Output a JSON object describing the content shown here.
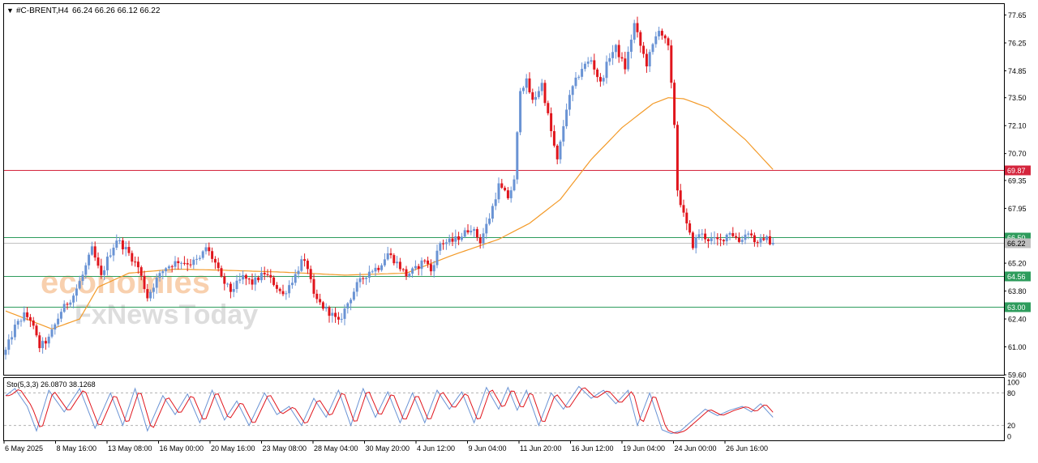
{
  "header": {
    "symbol": "#C-BRENT,H4",
    "ohlc": "66.24 66.26 66.12 66.22",
    "dropdown_icon": "triangle-down-icon"
  },
  "watermark": {
    "line1": "economies",
    "line2": "FxNewsToday",
    "color1": "#f4b27a",
    "color2": "#c8c8c8"
  },
  "colors": {
    "bull": "#6a93d4",
    "bear": "#e0151c",
    "ma": "#f39a28",
    "resistance": "#d4243c",
    "support": "#2e9c5c",
    "stoch_main": "#6a93d4",
    "stoch_signal": "#e0151c"
  },
  "price_axis": {
    "labels": [
      "77.65",
      "76.25",
      "74.85",
      "73.50",
      "72.10",
      "70.70",
      "69.35",
      "67.95",
      "66.50",
      "65.20",
      "63.80",
      "62.40",
      "61.00",
      "59.60"
    ]
  },
  "time_axis": {
    "labels": [
      "6 May 2025",
      "8 May 16:00",
      "13 May 08:00",
      "16 May 00:00",
      "20 May 16:00",
      "23 May 08:00",
      "28 May 04:00",
      "30 May 20:00",
      "4 Jun 12:00",
      "9 Jun 04:00",
      "11 Jun 20:00",
      "16 Jun 12:00",
      "19 Jun 04:00",
      "24 Jun 00:00",
      "26 Jun 16:00"
    ]
  },
  "levels": [
    {
      "name": "resistance",
      "value": 69.87,
      "label": "69.87",
      "color": "#d4243c"
    },
    {
      "name": "support-1",
      "value": 66.5,
      "label": "66.50",
      "color": "#2e9c5c"
    },
    {
      "name": "current",
      "value": 66.22,
      "label": "66.22",
      "color": "#c0c0c0"
    },
    {
      "name": "support-2",
      "value": 64.56,
      "label": "64.56",
      "color": "#2e9c5c"
    },
    {
      "name": "support-3",
      "value": 63.0,
      "label": "63.00",
      "color": "#2e9c5c"
    }
  ],
  "stochastic": {
    "label": "Sto(5,3,3) 26.0870 38.1268",
    "axis_labels": [
      "100",
      "80",
      "20",
      "0"
    ]
  },
  "chart_data": {
    "type": "candlestick",
    "symbol": "#C-BRENT",
    "timeframe": "H4",
    "ylim": [
      59.6,
      78.2
    ],
    "last_price": 66.22,
    "close_anchors": [
      [
        0,
        60.8
      ],
      [
        3,
        62.0
      ],
      [
        6,
        62.6
      ],
      [
        8,
        62.4
      ],
      [
        11,
        61.0
      ],
      [
        14,
        61.4
      ],
      [
        18,
        62.8
      ],
      [
        22,
        63.6
      ],
      [
        25,
        64.6
      ],
      [
        28,
        65.9
      ],
      [
        31,
        64.5
      ],
      [
        33,
        65.4
      ],
      [
        36,
        66.4
      ],
      [
        39,
        65.9
      ],
      [
        43,
        65.0
      ],
      [
        46,
        63.5
      ],
      [
        49,
        64.4
      ],
      [
        52,
        65.0
      ],
      [
        56,
        65.3
      ],
      [
        60,
        65.2
      ],
      [
        63,
        65.4
      ],
      [
        65,
        66.0
      ],
      [
        68,
        65.2
      ],
      [
        70,
        64.4
      ],
      [
        73,
        63.8
      ],
      [
        77,
        64.5
      ],
      [
        80,
        64.2
      ],
      [
        84,
        64.7
      ],
      [
        87,
        64.2
      ],
      [
        90,
        63.6
      ],
      [
        94,
        64.6
      ],
      [
        96,
        65.3
      ],
      [
        98,
        65.0
      ],
      [
        100,
        63.5
      ],
      [
        103,
        63.0
      ],
      [
        106,
        62.6
      ],
      [
        108,
        62.2
      ],
      [
        111,
        63.2
      ],
      [
        114,
        64.1
      ],
      [
        118,
        64.8
      ],
      [
        121,
        65.0
      ],
      [
        124,
        65.7
      ],
      [
        127,
        65.2
      ],
      [
        130,
        64.6
      ],
      [
        133,
        64.9
      ],
      [
        136,
        65.4
      ],
      [
        138,
        64.8
      ],
      [
        141,
        66.2
      ],
      [
        145,
        66.3
      ],
      [
        148,
        66.6
      ],
      [
        151,
        67.0
      ],
      [
        154,
        66.3
      ],
      [
        157,
        67.5
      ],
      [
        160,
        69.1
      ],
      [
        163,
        68.5
      ],
      [
        165,
        69.3
      ],
      [
        167,
        74.0
      ],
      [
        169,
        74.3
      ],
      [
        171,
        73.3
      ],
      [
        174,
        74.2
      ],
      [
        177,
        71.8
      ],
      [
        179,
        70.3
      ],
      [
        182,
        73.0
      ],
      [
        184,
        74.0
      ],
      [
        187,
        75.0
      ],
      [
        190,
        75.4
      ],
      [
        193,
        74.2
      ],
      [
        196,
        75.6
      ],
      [
        198,
        76.0
      ],
      [
        201,
        75.0
      ],
      [
        204,
        77.2
      ],
      [
        206,
        76.1
      ],
      [
        208,
        75.2
      ],
      [
        212,
        77.0
      ],
      [
        215,
        76.0
      ],
      [
        217,
        72.2
      ],
      [
        218,
        68.9
      ],
      [
        220,
        67.6
      ],
      [
        223,
        66.1
      ],
      [
        225,
        66.7
      ],
      [
        228,
        66.4
      ],
      [
        232,
        66.3
      ],
      [
        235,
        66.8
      ],
      [
        238,
        66.3
      ],
      [
        241,
        66.8
      ],
      [
        244,
        66.1
      ],
      [
        246,
        66.5
      ],
      [
        249,
        66.2
      ]
    ],
    "ma_anchors": [
      [
        0,
        62.8
      ],
      [
        15,
        61.9
      ],
      [
        24,
        62.4
      ],
      [
        30,
        64.0
      ],
      [
        40,
        64.7
      ],
      [
        55,
        64.9
      ],
      [
        70,
        64.85
      ],
      [
        90,
        64.75
      ],
      [
        110,
        64.6
      ],
      [
        130,
        64.7
      ],
      [
        145,
        65.6
      ],
      [
        160,
        66.4
      ],
      [
        170,
        67.2
      ],
      [
        180,
        68.4
      ],
      [
        190,
        70.4
      ],
      [
        200,
        72.0
      ],
      [
        210,
        73.2
      ],
      [
        215,
        73.5
      ],
      [
        220,
        73.45
      ],
      [
        228,
        73.0
      ],
      [
        240,
        71.4
      ],
      [
        249,
        69.9
      ]
    ],
    "stoch_anchors": [
      [
        0,
        75
      ],
      [
        3,
        88
      ],
      [
        7,
        55
      ],
      [
        10,
        10
      ],
      [
        14,
        85
      ],
      [
        19,
        45
      ],
      [
        24,
        88
      ],
      [
        29,
        15
      ],
      [
        34,
        80
      ],
      [
        38,
        20
      ],
      [
        42,
        88
      ],
      [
        46,
        10
      ],
      [
        51,
        75
      ],
      [
        55,
        40
      ],
      [
        59,
        78
      ],
      [
        63,
        25
      ],
      [
        67,
        85
      ],
      [
        71,
        30
      ],
      [
        75,
        65
      ],
      [
        79,
        20
      ],
      [
        84,
        80
      ],
      [
        88,
        40
      ],
      [
        92,
        55
      ],
      [
        96,
        20
      ],
      [
        100,
        70
      ],
      [
        104,
        35
      ],
      [
        108,
        85
      ],
      [
        112,
        20
      ],
      [
        116,
        88
      ],
      [
        120,
        35
      ],
      [
        124,
        82
      ],
      [
        128,
        25
      ],
      [
        132,
        80
      ],
      [
        136,
        25
      ],
      [
        140,
        85
      ],
      [
        144,
        50
      ],
      [
        148,
        82
      ],
      [
        152,
        25
      ],
      [
        156,
        90
      ],
      [
        160,
        50
      ],
      [
        163,
        90
      ],
      [
        166,
        48
      ],
      [
        169,
        85
      ],
      [
        173,
        20
      ],
      [
        177,
        80
      ],
      [
        181,
        50
      ],
      [
        186,
        92
      ],
      [
        190,
        70
      ],
      [
        194,
        85
      ],
      [
        198,
        60
      ],
      [
        202,
        85
      ],
      [
        205,
        20
      ],
      [
        209,
        80
      ],
      [
        213,
        12
      ],
      [
        216,
        5
      ],
      [
        219,
        10
      ],
      [
        223,
        30
      ],
      [
        227,
        50
      ],
      [
        231,
        38
      ],
      [
        235,
        48
      ],
      [
        239,
        55
      ],
      [
        242,
        45
      ],
      [
        245,
        60
      ],
      [
        249,
        35
      ]
    ]
  }
}
